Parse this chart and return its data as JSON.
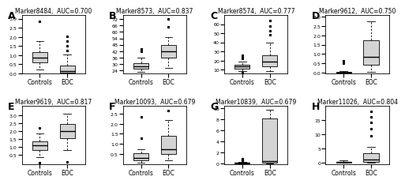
{
  "panels": [
    {
      "label": "A",
      "title": "Marker8484,  AUC=0.700",
      "groups": [
        "Controls",
        "EOC"
      ],
      "ylim": [
        0.0,
        3.2
      ],
      "yticks": [
        0.0,
        0.5,
        1.0,
        1.5,
        2.0,
        2.5,
        3.0
      ],
      "boxes": [
        {
          "q1": 0.6,
          "median": 0.85,
          "q3": 1.15,
          "whislo": 0.22,
          "whishi": 1.75,
          "fliers": [
            2.85
          ]
        },
        {
          "q1": 0.04,
          "median": 0.12,
          "q3": 0.42,
          "whislo": 0.0,
          "whishi": 1.05,
          "fliers": [
            1.25,
            1.5,
            1.75,
            2.05
          ]
        }
      ]
    },
    {
      "label": "B",
      "title": "Marker8573,  AUC=0.837",
      "groups": [
        "Controls",
        "EOC"
      ],
      "ylim": [
        21,
        76
      ],
      "yticks": [
        24,
        30,
        36,
        42,
        48,
        54,
        60,
        66,
        72
      ],
      "boxes": [
        {
          "q1": 25.5,
          "median": 27.5,
          "q3": 30.5,
          "whislo": 22.5,
          "whishi": 36,
          "fliers": [
            42,
            44
          ]
        },
        {
          "q1": 36,
          "median": 42,
          "q3": 48,
          "whislo": 26,
          "whishi": 55,
          "fliers": [
            65,
            72
          ]
        }
      ]
    },
    {
      "label": "C",
      "title": "Marker8574,  AUC=0.777",
      "groups": [
        "Controls",
        "EOC"
      ],
      "ylim": [
        6,
        70
      ],
      "yticks": [
        10,
        20,
        30,
        40,
        50,
        60
      ],
      "boxes": [
        {
          "q1": 11.5,
          "median": 13.5,
          "q3": 15.5,
          "whislo": 8.5,
          "whishi": 19,
          "fliers": [
            7.0,
            22,
            24,
            26
          ]
        },
        {
          "q1": 14,
          "median": 19,
          "q3": 26,
          "whislo": 9,
          "whishi": 40,
          "fliers": [
            48,
            53,
            58,
            64
          ]
        }
      ]
    },
    {
      "label": "D",
      "title": "Marker9612,  AUC=0.750",
      "groups": [
        "Controls",
        "EOC"
      ],
      "ylim": [
        -0.05,
        3.1
      ],
      "yticks": [
        0.0,
        0.5,
        1.0,
        1.5,
        2.0,
        2.5,
        3.0
      ],
      "boxes": [
        {
          "q1": 0.0,
          "median": 0.01,
          "q3": 0.04,
          "whislo": 0.0,
          "whishi": 0.08,
          "fliers": [
            0.5,
            0.65
          ]
        },
        {
          "q1": 0.4,
          "median": 0.85,
          "q3": 1.75,
          "whislo": 0.04,
          "whishi": 2.75,
          "fliers": []
        }
      ]
    },
    {
      "label": "E",
      "title": "Marker9619,  AUC=0.817",
      "groups": [
        "Controls",
        "EOC"
      ],
      "ylim": [
        -0.1,
        3.6
      ],
      "yticks": [
        0.5,
        1.0,
        1.5,
        2.0,
        2.5,
        3.0
      ],
      "boxes": [
        {
          "q1": 0.8,
          "median": 1.1,
          "q3": 1.35,
          "whislo": 0.35,
          "whishi": 1.85,
          "fliers": [
            0.0,
            2.2
          ]
        },
        {
          "q1": 1.55,
          "median": 2.0,
          "q3": 2.45,
          "whislo": 0.8,
          "whishi": 3.1,
          "fliers": [
            0.05
          ]
        }
      ]
    },
    {
      "label": "F",
      "title": "Marker10093,  AUC=0.679",
      "groups": [
        "Controls",
        "EOC"
      ],
      "ylim": [
        0.0,
        2.9
      ],
      "yticks": [
        0.5,
        1.0,
        1.5,
        2.0,
        2.5
      ],
      "boxes": [
        {
          "q1": 0.18,
          "median": 0.32,
          "q3": 0.52,
          "whislo": 0.08,
          "whishi": 0.72,
          "fliers": [
            1.3,
            2.35
          ]
        },
        {
          "q1": 0.5,
          "median": 0.75,
          "q3": 1.4,
          "whislo": 0.18,
          "whishi": 2.2,
          "fliers": [
            2.65
          ]
        }
      ]
    },
    {
      "label": "G",
      "title": "Marker10839,  AUC=0.679",
      "groups": [
        "Controls",
        "EOC"
      ],
      "ylim": [
        -0.1,
        10.5
      ],
      "yticks": [
        0,
        2,
        4,
        6,
        8,
        10
      ],
      "boxes": [
        {
          "q1": 0.05,
          "median": 0.1,
          "q3": 0.18,
          "whislo": 0.0,
          "whishi": 0.35,
          "fliers": [
            0.55,
            0.65,
            0.75,
            0.85
          ]
        },
        {
          "q1": 0.2,
          "median": 0.5,
          "q3": 8.2,
          "whislo": 0.0,
          "whishi": 9.8,
          "fliers": []
        }
      ]
    },
    {
      "label": "H",
      "title": "Marker11026,  AUC=0.804",
      "groups": [
        "Controls",
        "EOC"
      ],
      "ylim": [
        -0.5,
        20
      ],
      "yticks": [
        0,
        5,
        10,
        15
      ],
      "boxes": [
        {
          "q1": 0.05,
          "median": 0.15,
          "q3": 0.3,
          "whislo": 0.0,
          "whishi": 0.7,
          "fliers": []
        },
        {
          "q1": 0.3,
          "median": 1.2,
          "q3": 3.2,
          "whislo": 0.05,
          "whishi": 5.5,
          "fliers": [
            9.5,
            12,
            14,
            16,
            18
          ]
        }
      ]
    }
  ],
  "box_facecolor": "#d4d4d4",
  "median_color": "black",
  "flier_marker": "*",
  "background_color": "white",
  "panel_label_fontsize": 9,
  "title_fontsize": 5.5,
  "tick_fontsize": 4.5,
  "xlabel_fontsize": 5.5
}
